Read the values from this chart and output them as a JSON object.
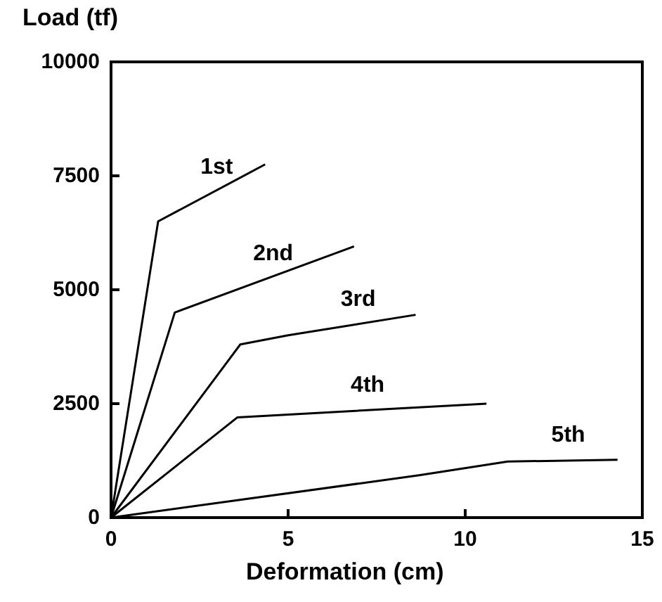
{
  "chart_data": {
    "type": "line",
    "ylabel": "Load (tf)",
    "xlabel": "Deformation (cm)",
    "xlim": [
      0,
      15
    ],
    "xticks": [
      0,
      5,
      10,
      15
    ],
    "ylim": [
      0,
      10000
    ],
    "yticks": [
      0,
      2500,
      5000,
      7500,
      10000
    ],
    "grid": false,
    "legend": false,
    "marker": "none",
    "line_style": "solid",
    "series": [
      {
        "name": "1st",
        "color": "#000000",
        "x": [
          0,
          1.33,
          4.35
        ],
        "values": [
          0,
          6500,
          7750
        ]
      },
      {
        "name": "2nd",
        "color": "#000000",
        "x": [
          0,
          1.8,
          6.86
        ],
        "values": [
          0,
          4500,
          5950
        ]
      },
      {
        "name": "3rd",
        "color": "#000000",
        "x": [
          0,
          3.65,
          5,
          8.6
        ],
        "values": [
          0,
          3800,
          4000,
          4450
        ]
      },
      {
        "name": "4th",
        "color": "#000000",
        "x": [
          0,
          3.57,
          10.6
        ],
        "values": [
          0,
          2200,
          2500
        ]
      },
      {
        "name": "5th",
        "color": "#000000",
        "x": [
          0,
          8.7,
          11.2,
          14.3
        ],
        "values": [
          0,
          930,
          1230,
          1270
        ]
      }
    ]
  }
}
